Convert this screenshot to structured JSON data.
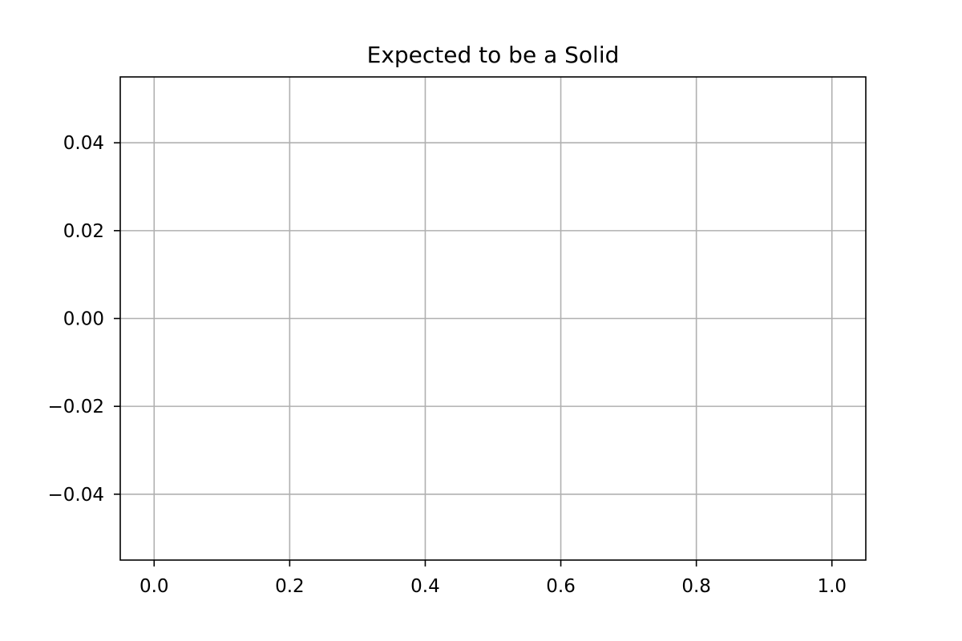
{
  "chart_data": {
    "type": "line",
    "title": "Expected to be a Solid",
    "xlabel": "",
    "ylabel": "",
    "xlim": [
      -0.05,
      1.05
    ],
    "ylim": [
      -0.055,
      0.055
    ],
    "x_ticks": [
      0.0,
      0.2,
      0.4,
      0.6,
      0.8,
      1.0
    ],
    "x_tick_labels": [
      "0.0",
      "0.2",
      "0.4",
      "0.6",
      "0.8",
      "1.0"
    ],
    "y_ticks": [
      -0.04,
      -0.02,
      0.0,
      0.02,
      0.04
    ],
    "y_tick_labels": [
      "−0.04",
      "−0.02",
      "0.00",
      "0.02",
      "0.04"
    ],
    "grid": true,
    "series": []
  },
  "colors": {
    "grid": "#b0b0b0",
    "axes": "#000000",
    "background": "#ffffff"
  }
}
